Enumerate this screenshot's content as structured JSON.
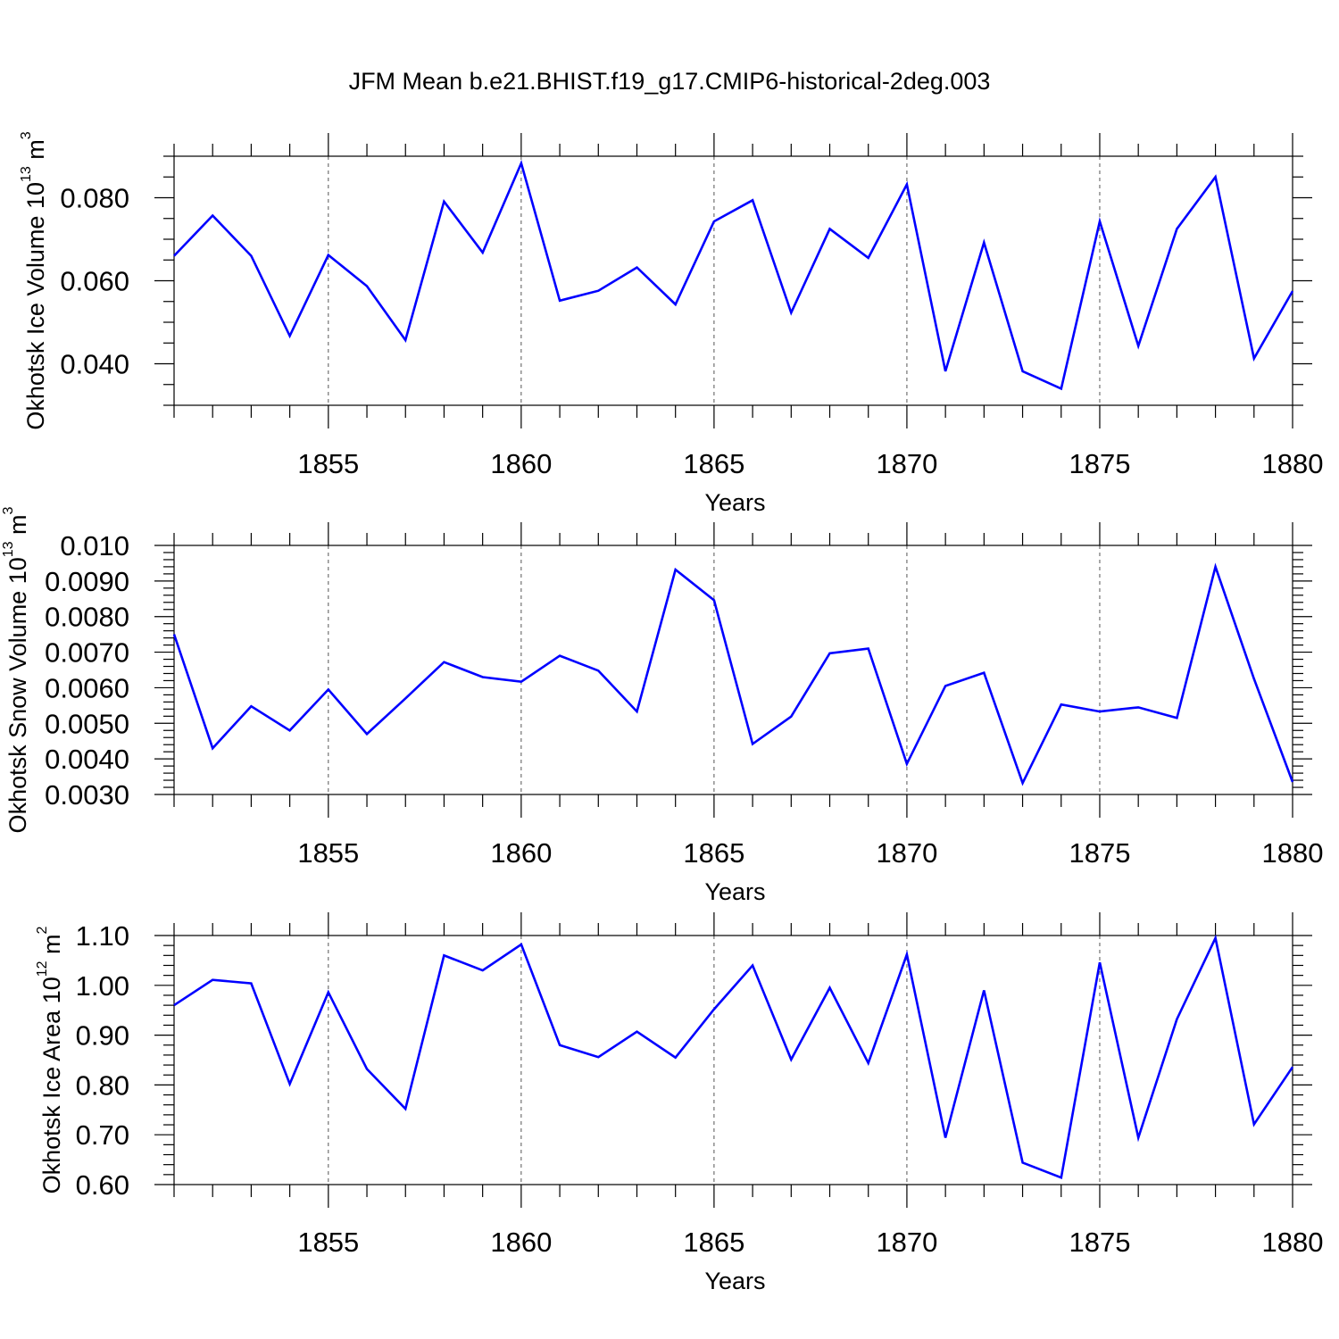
{
  "title": "JFM Mean b.e21.BHIST.f19_g17.CMIP6-historical-2deg.003",
  "chart_data": [
    {
      "type": "line",
      "title": "",
      "xlabel": "Years",
      "ylabel": "Okhotsk Ice Volume",
      "ylabel_unit_base": "10",
      "ylabel_unit_exp": "13",
      "ylabel_unit_tail": " m",
      "ylabel_unit_tail_exp": "3",
      "xlim": [
        1851,
        1880
      ],
      "ylim": [
        0.03,
        0.09
      ],
      "x_ticks": [
        1855,
        1860,
        1865,
        1870,
        1875,
        1880
      ],
      "y_ticks": [
        0.04,
        0.06,
        0.08
      ],
      "y_tick_labels": [
        "0.040",
        "0.060",
        "0.080"
      ],
      "y_minor_step": 0.005,
      "grid": "vertical dashed at major x ticks",
      "series": [
        {
          "name": "Okhotsk Ice Volume",
          "color": "#0000ff",
          "x": [
            1851,
            1852,
            1853,
            1854,
            1855,
            1856,
            1857,
            1858,
            1859,
            1860,
            1861,
            1862,
            1863,
            1864,
            1865,
            1866,
            1867,
            1868,
            1869,
            1870,
            1871,
            1872,
            1873,
            1874,
            1875,
            1876,
            1877,
            1878,
            1879,
            1880
          ],
          "values": [
            0.066,
            0.0757,
            0.066,
            0.0467,
            0.0662,
            0.0587,
            0.0457,
            0.0791,
            0.0668,
            0.0883,
            0.0552,
            0.0576,
            0.0632,
            0.0543,
            0.0743,
            0.0794,
            0.0523,
            0.0725,
            0.0655,
            0.0832,
            0.0382,
            0.0692,
            0.0382,
            0.034,
            0.0743,
            0.0443,
            0.0725,
            0.085,
            0.0413,
            0.0575
          ]
        }
      ]
    },
    {
      "type": "line",
      "title": "",
      "xlabel": "Years",
      "ylabel": "Okhotsk Snow Volume",
      "ylabel_unit_base": "10",
      "ylabel_unit_exp": "13",
      "ylabel_unit_tail": " m",
      "ylabel_unit_tail_exp": "3",
      "xlim": [
        1851,
        1880
      ],
      "ylim": [
        0.003,
        0.01
      ],
      "x_ticks": [
        1855,
        1860,
        1865,
        1870,
        1875,
        1880
      ],
      "y_ticks": [
        0.003,
        0.004,
        0.005,
        0.006,
        0.007,
        0.008,
        0.009,
        0.01
      ],
      "y_tick_labels": [
        "0.0030",
        "0.0040",
        "0.0050",
        "0.0060",
        "0.0070",
        "0.0080",
        "0.0090",
        "0.010"
      ],
      "y_minor_step": 0.0002,
      "grid": "vertical dashed at major x ticks",
      "series": [
        {
          "name": "Okhotsk Snow Volume",
          "color": "#0000ff",
          "x": [
            1851,
            1852,
            1853,
            1854,
            1855,
            1856,
            1857,
            1858,
            1859,
            1860,
            1861,
            1862,
            1863,
            1864,
            1865,
            1866,
            1867,
            1868,
            1869,
            1870,
            1871,
            1872,
            1873,
            1874,
            1875,
            1876,
            1877,
            1878,
            1879,
            1880
          ],
          "values": [
            0.0075,
            0.0043,
            0.00548,
            0.0048,
            0.00595,
            0.0047,
            0.0057,
            0.00672,
            0.0063,
            0.00617,
            0.0069,
            0.00648,
            0.00533,
            0.00932,
            0.00846,
            0.00442,
            0.00519,
            0.00697,
            0.0071,
            0.00386,
            0.00605,
            0.00642,
            0.00332,
            0.00553,
            0.00533,
            0.00545,
            0.00515,
            0.0094,
            0.00625,
            0.00335
          ]
        }
      ]
    },
    {
      "type": "line",
      "title": "",
      "xlabel": "Years",
      "ylabel": "Okhotsk Ice Area",
      "ylabel_unit_base": "10",
      "ylabel_unit_exp": "12",
      "ylabel_unit_tail": " m",
      "ylabel_unit_tail_exp": "2",
      "xlim": [
        1851,
        1880
      ],
      "ylim": [
        0.6,
        1.1
      ],
      "x_ticks": [
        1855,
        1860,
        1865,
        1870,
        1875,
        1880
      ],
      "y_ticks": [
        0.6,
        0.7,
        0.8,
        0.9,
        1.0,
        1.1
      ],
      "y_tick_labels": [
        "0.60",
        "0.70",
        "0.80",
        "0.90",
        "1.00",
        "1.10"
      ],
      "y_minor_step": 0.02,
      "grid": "vertical dashed at major x ticks",
      "series": [
        {
          "name": "Okhotsk Ice Area",
          "color": "#0000ff",
          "x": [
            1851,
            1852,
            1853,
            1854,
            1855,
            1856,
            1857,
            1858,
            1859,
            1860,
            1861,
            1862,
            1863,
            1864,
            1865,
            1866,
            1867,
            1868,
            1869,
            1870,
            1871,
            1872,
            1873,
            1874,
            1875,
            1876,
            1877,
            1878,
            1879,
            1880
          ],
          "values": [
            0.96,
            1.011,
            1.004,
            0.802,
            0.986,
            0.832,
            0.752,
            1.06,
            1.03,
            1.082,
            0.88,
            0.856,
            0.907,
            0.855,
            0.952,
            1.04,
            0.851,
            0.995,
            0.844,
            1.062,
            0.694,
            0.99,
            0.644,
            0.614,
            1.046,
            0.694,
            0.932,
            1.095,
            0.721,
            0.836
          ]
        }
      ]
    }
  ]
}
